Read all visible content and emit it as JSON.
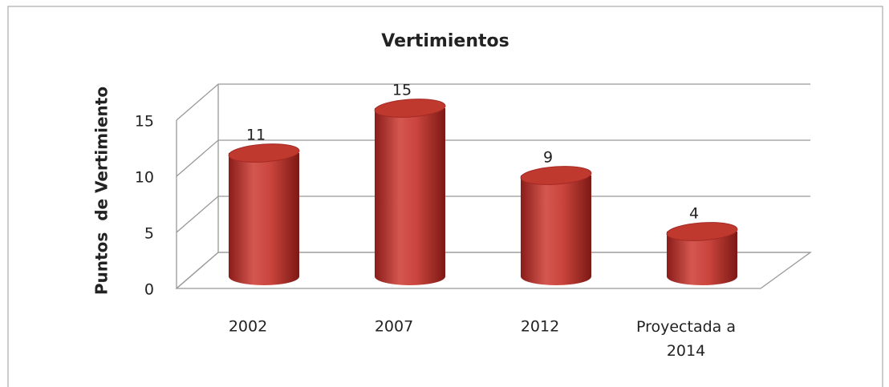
{
  "chart_data": {
    "type": "bar3d",
    "title": "Vertimientos",
    "y_label": "Puntos  de Vertimiento",
    "categories": [
      "2002",
      "2007",
      "2012",
      "Proyectada a 2014"
    ],
    "values": [
      11,
      15,
      9,
      4
    ],
    "color": "#c0392f",
    "ylim": [
      0,
      15
    ],
    "yticks": [
      0,
      5,
      10,
      15
    ],
    "grid": true
  }
}
